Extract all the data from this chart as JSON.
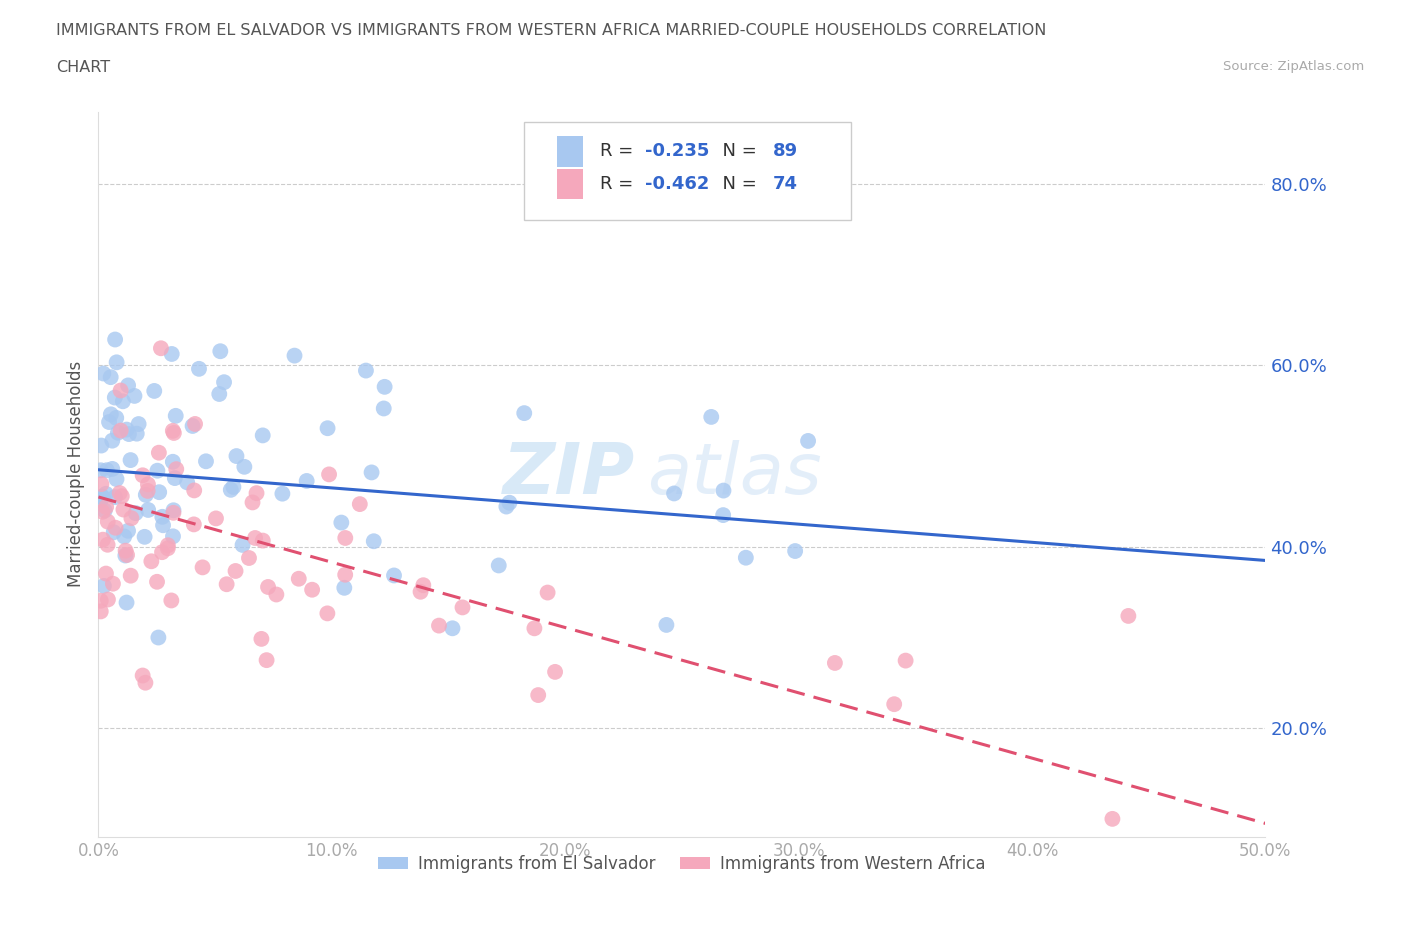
{
  "title_line1": "IMMIGRANTS FROM EL SALVADOR VS IMMIGRANTS FROM WESTERN AFRICA MARRIED-COUPLE HOUSEHOLDS CORRELATION",
  "title_line2": "CHART",
  "source": "Source: ZipAtlas.com",
  "legend_label1": "Immigrants from El Salvador",
  "legend_label2": "Immigrants from Western Africa",
  "R1": -0.235,
  "N1": 89,
  "R2": -0.462,
  "N2": 74,
  "color1": "#a8c8f0",
  "color2": "#f5a8bc",
  "trendline_color1": "#3366cc",
  "trendline_color2": "#e05070",
  "xlim": [
    0.0,
    0.5
  ],
  "ylim": [
    0.08,
    0.88
  ],
  "ylabel": "Married-couple Households",
  "xticks": [
    0.0,
    0.1,
    0.2,
    0.3,
    0.4,
    0.5
  ],
  "yticks": [
    0.2,
    0.4,
    0.6,
    0.8
  ],
  "xticklabels": [
    "0.0%",
    "10.0%",
    "20.0%",
    "30.0%",
    "40.0%",
    "50.0%"
  ],
  "yticklabels": [
    "20.0%",
    "40.0%",
    "60.0%",
    "80.0%"
  ],
  "watermark1": "ZIP",
  "watermark2": "atlas",
  "background_color": "#ffffff",
  "grid_color": "#cccccc",
  "title_color": "#555555",
  "axis_label_color": "#555555",
  "tick_color": "#aaaaaa",
  "legend_text_color": "#3366cc",
  "seed1": 42,
  "seed2": 99,
  "trendline1_x0": 0.0,
  "trendline1_y0": 0.485,
  "trendline1_x1": 0.5,
  "trendline1_y1": 0.385,
  "trendline2_x0": 0.0,
  "trendline2_y0": 0.455,
  "trendline2_x1": 0.5,
  "trendline2_y1": 0.095
}
